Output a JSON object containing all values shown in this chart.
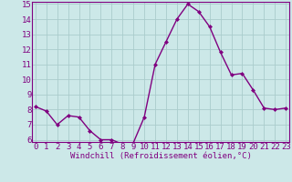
{
  "hours": [
    0,
    1,
    2,
    3,
    4,
    5,
    6,
    7,
    8,
    9,
    10,
    11,
    12,
    13,
    14,
    15,
    16,
    17,
    18,
    19,
    20,
    21,
    22,
    23
  ],
  "values": [
    8.2,
    7.9,
    7.0,
    7.6,
    7.5,
    6.6,
    6.0,
    6.0,
    5.7,
    5.8,
    7.5,
    11.0,
    12.5,
    14.0,
    15.0,
    14.5,
    13.5,
    11.8,
    10.3,
    10.4,
    9.3,
    8.1,
    8.0,
    8.1
  ],
  "line_color": "#800080",
  "marker": "D",
  "marker_size": 2.0,
  "bg_color": "#cce8e8",
  "grid_color": "#aacccc",
  "xlabel": "Windchill (Refroidissement éolien,°C)",
  "ylim_min": 6,
  "ylim_max": 15,
  "yticks": [
    6,
    7,
    8,
    9,
    10,
    11,
    12,
    13,
    14,
    15
  ],
  "xticks": [
    0,
    1,
    2,
    3,
    4,
    5,
    6,
    7,
    8,
    9,
    10,
    11,
    12,
    13,
    14,
    15,
    16,
    17,
    18,
    19,
    20,
    21,
    22,
    23
  ],
  "axis_color": "#800080",
  "xlabel_fontsize": 6.5,
  "tick_fontsize": 6.5,
  "linewidth": 1.0
}
